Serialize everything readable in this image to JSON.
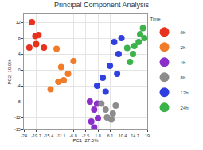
{
  "chart_data": {
    "type": "scatter",
    "title": "Principal Component Analysis",
    "x_label": "PC1  27.5%",
    "y_label": "PC2  10.9%",
    "legend_title": "Time",
    "legend": "right",
    "grid": true,
    "marker": "circle",
    "xlim": [
      -24,
      19
    ],
    "xticks": [
      -24,
      -19.7,
      -15.4,
      -11.1,
      -6.8,
      -2.5,
      1.8,
      6.1,
      10.4,
      14.7,
      19
    ],
    "ylim": [
      -15,
      14
    ],
    "yticks": [
      -15,
      -12,
      -8,
      -4,
      0,
      4,
      8,
      12
    ],
    "series": [
      {
        "name": "0h",
        "color": "#e8321e",
        "x": [
          -21.2,
          -20,
          -18.9,
          -22.1,
          -17,
          -19.7
        ],
        "y": [
          12,
          8.5,
          8.8,
          5.6,
          5.6,
          6.5
        ]
      },
      {
        "name": "2h",
        "color": "#f07c2a",
        "x": [
          -12.6,
          -11,
          -6.7,
          -10.1,
          -8.6,
          -14.7,
          -12
        ],
        "y": [
          5.3,
          0.7,
          2.2,
          -2.6,
          -1,
          -4.9,
          -3
        ]
      },
      {
        "name": "4h",
        "color": "#8a2fc9",
        "x": [
          -1,
          0.5,
          1.5,
          -0.5,
          0.5,
          1.8
        ],
        "y": [
          -8,
          -10,
          -8.5,
          -13,
          -14.5,
          -12.2
        ]
      },
      {
        "name": "8h",
        "color": "#8c8c8c",
        "x": [
          3,
          5,
          6.5,
          8,
          7,
          4.5
        ],
        "y": [
          -8.5,
          -12,
          -12.5,
          -9,
          -11,
          -10
        ]
      },
      {
        "name": "12h",
        "color": "#2f3fe0",
        "x": [
          1.5,
          4.5,
          3.5,
          6,
          9,
          7.5,
          10,
          8.5
        ],
        "y": [
          -4,
          -5.5,
          -2,
          1,
          4,
          7,
          8,
          -1
        ]
      },
      {
        "name": "24h",
        "color": "#3cb34a",
        "x": [
          13,
          14.5,
          16,
          16.5,
          18,
          17.5,
          14,
          12
        ],
        "y": [
          2,
          6,
          7,
          9,
          8,
          10.5,
          4,
          5.5
        ]
      }
    ]
  }
}
